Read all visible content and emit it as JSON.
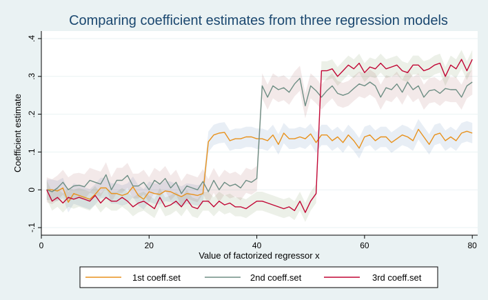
{
  "chart_data": {
    "type": "line",
    "title": "Comparing coefficient estimates from three regression models",
    "xlabel": "Value of factorized regressor x",
    "ylabel": "Coefficient estimate",
    "xlim": [
      0,
      81
    ],
    "ylim": [
      -0.12,
      0.42
    ],
    "xticks": [
      0,
      20,
      40,
      60,
      80
    ],
    "xtick_labels": [
      "0",
      "20",
      "40",
      "60",
      "80"
    ],
    "yticks": [
      -0.1,
      0,
      0.1,
      0.2,
      0.3,
      0.4
    ],
    "ytick_labels": [
      "-.1",
      "0",
      ".1",
      ".2",
      ".3",
      ".4"
    ],
    "grid": "horizontal",
    "legend_position": "bottom",
    "colors": {
      "background": "#eaf2f3",
      "plot_background": "#ffffff",
      "title": "#1a476f",
      "grid": "#eaf2f3"
    },
    "series": [
      {
        "name": "1st coeff.set",
        "color": "#e8911b",
        "band_color": "#2e63a4",
        "band_halfwidth": 0.027,
        "x": [
          1,
          2,
          3,
          4,
          5,
          6,
          7,
          8,
          9,
          10,
          11,
          12,
          13,
          14,
          15,
          16,
          17,
          18,
          19,
          20,
          21,
          22,
          23,
          24,
          25,
          26,
          27,
          28,
          29,
          30,
          31,
          32,
          33,
          34,
          35,
          36,
          37,
          38,
          39,
          40,
          41,
          42,
          43,
          44,
          45,
          46,
          47,
          48,
          49,
          50,
          51,
          52,
          53,
          54,
          55,
          56,
          57,
          58,
          59,
          60,
          61,
          62,
          63,
          64,
          65,
          66,
          67,
          68,
          69,
          70,
          71,
          72,
          73,
          74,
          75,
          76,
          77,
          78,
          79,
          80
        ],
        "values": [
          0.0,
          0.0,
          -0.003,
          0.005,
          -0.033,
          -0.01,
          -0.015,
          -0.02,
          -0.025,
          -0.012,
          0.005,
          0.005,
          -0.01,
          -0.01,
          -0.015,
          -0.01,
          0.008,
          -0.015,
          -0.025,
          -0.005,
          -0.01,
          -0.012,
          -0.003,
          -0.005,
          -0.012,
          -0.018,
          -0.01,
          -0.012,
          -0.015,
          -0.01,
          0.127,
          0.145,
          0.15,
          0.152,
          0.13,
          0.135,
          0.135,
          0.14,
          0.14,
          0.135,
          0.135,
          0.13,
          0.145,
          0.12,
          0.15,
          0.135,
          0.135,
          0.14,
          0.135,
          0.148,
          0.125,
          0.145,
          0.145,
          0.13,
          0.14,
          0.125,
          0.145,
          0.13,
          0.11,
          0.14,
          0.145,
          0.13,
          0.14,
          0.14,
          0.125,
          0.135,
          0.145,
          0.14,
          0.13,
          0.16,
          0.14,
          0.12,
          0.145,
          0.15,
          0.13,
          0.14,
          0.13,
          0.15,
          0.155,
          0.15
        ]
      },
      {
        "name": "2nd coeff.set",
        "color": "#6e8e84",
        "band_color": "#90353b",
        "band_halfwidth": 0.033,
        "x": [
          1,
          2,
          3,
          4,
          5,
          6,
          7,
          8,
          9,
          10,
          11,
          12,
          13,
          14,
          15,
          16,
          17,
          18,
          19,
          20,
          21,
          22,
          23,
          24,
          25,
          26,
          27,
          28,
          29,
          30,
          31,
          32,
          33,
          34,
          35,
          36,
          37,
          38,
          39,
          40,
          41,
          42,
          43,
          44,
          45,
          46,
          47,
          48,
          49,
          50,
          51,
          52,
          53,
          54,
          55,
          56,
          57,
          58,
          59,
          60,
          61,
          62,
          63,
          64,
          65,
          66,
          67,
          68,
          69,
          70,
          71,
          72,
          73,
          74,
          75,
          76,
          77,
          78,
          79,
          80
        ],
        "values": [
          0.0,
          -0.005,
          0.005,
          0.02,
          0.0,
          0.01,
          0.012,
          0.008,
          0.025,
          0.02,
          0.015,
          0.04,
          0.0,
          0.025,
          0.025,
          0.038,
          0.01,
          0.01,
          0.02,
          0.0,
          0.025,
          0.015,
          0.03,
          0.005,
          0.02,
          -0.01,
          0.01,
          0.005,
          0.0,
          0.022,
          -0.005,
          0.025,
          0.0,
          0.02,
          0.01,
          0.015,
          0.005,
          0.025,
          0.02,
          0.03,
          0.275,
          0.245,
          0.275,
          0.265,
          0.27,
          0.258,
          0.28,
          0.295,
          0.222,
          0.275,
          0.262,
          0.245,
          0.262,
          0.275,
          0.255,
          0.25,
          0.255,
          0.268,
          0.28,
          0.275,
          0.285,
          0.275,
          0.245,
          0.27,
          0.265,
          0.28,
          0.258,
          0.285,
          0.265,
          0.275,
          0.245,
          0.262,
          0.265,
          0.255,
          0.268,
          0.265,
          0.265,
          0.245,
          0.275,
          0.285
        ]
      },
      {
        "name": "3rd coeff.set",
        "color": "#c10534",
        "band_color": "#55752f",
        "band_halfwidth": 0.025,
        "x": [
          1,
          2,
          3,
          4,
          5,
          6,
          7,
          8,
          9,
          10,
          11,
          12,
          13,
          14,
          15,
          16,
          17,
          18,
          19,
          20,
          21,
          22,
          23,
          24,
          25,
          26,
          27,
          28,
          29,
          30,
          31,
          32,
          33,
          34,
          35,
          36,
          37,
          38,
          39,
          40,
          41,
          42,
          43,
          44,
          45,
          46,
          47,
          48,
          49,
          50,
          51,
          52,
          53,
          54,
          55,
          56,
          57,
          58,
          59,
          60,
          61,
          62,
          63,
          64,
          65,
          66,
          67,
          68,
          69,
          70,
          71,
          72,
          73,
          74,
          75,
          76,
          77,
          78,
          79,
          80
        ],
        "values": [
          0.0,
          -0.03,
          -0.02,
          -0.035,
          -0.02,
          -0.025,
          -0.02,
          -0.025,
          -0.03,
          -0.015,
          -0.035,
          -0.02,
          -0.03,
          -0.03,
          -0.02,
          -0.03,
          -0.045,
          -0.035,
          -0.03,
          -0.04,
          -0.05,
          -0.02,
          -0.045,
          -0.04,
          -0.03,
          -0.045,
          -0.025,
          -0.045,
          -0.05,
          -0.03,
          -0.03,
          -0.045,
          -0.03,
          -0.04,
          -0.035,
          -0.045,
          -0.045,
          -0.05,
          -0.04,
          -0.03,
          -0.03,
          -0.035,
          -0.04,
          -0.045,
          -0.05,
          -0.045,
          -0.055,
          -0.03,
          -0.06,
          -0.03,
          -0.01,
          0.315,
          0.315,
          0.32,
          0.3,
          0.315,
          0.33,
          0.32,
          0.335,
          0.31,
          0.325,
          0.32,
          0.335,
          0.32,
          0.325,
          0.33,
          0.315,
          0.31,
          0.33,
          0.33,
          0.315,
          0.32,
          0.33,
          0.335,
          0.3,
          0.33,
          0.32,
          0.345,
          0.315,
          0.345
        ]
      }
    ]
  }
}
